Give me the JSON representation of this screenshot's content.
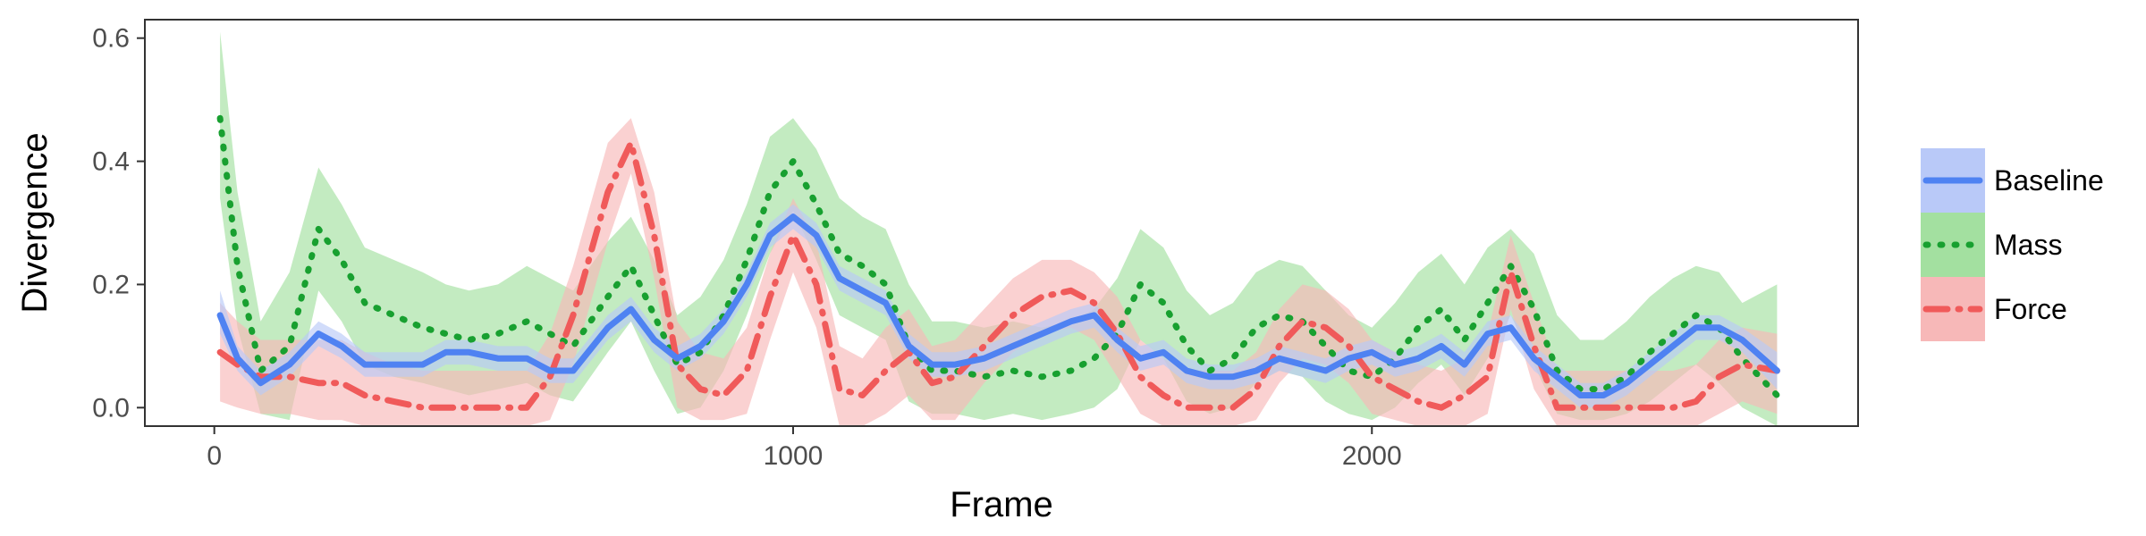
{
  "chart_data": {
    "type": "line",
    "title": "",
    "xlabel": "Frame",
    "ylabel": "Divergence",
    "xlim": [
      -120,
      2840
    ],
    "ylim": [
      -0.03,
      0.63
    ],
    "x_ticks": [
      0,
      1000,
      2000
    ],
    "x_tick_labels": [
      "0",
      "1000",
      "2000"
    ],
    "y_ticks": [
      0.0,
      0.2,
      0.4,
      0.6
    ],
    "y_tick_labels": [
      "0.0",
      "0.2",
      "0.4",
      "0.6"
    ],
    "grid": false,
    "legend_position": "right",
    "series": [
      {
        "name": "Baseline",
        "line_color": "#4f82f2",
        "band_color": "#b9c9f8",
        "line_style": "solid",
        "x": [
          10,
          40,
          80,
          130,
          180,
          220,
          260,
          310,
          360,
          400,
          440,
          490,
          540,
          580,
          620,
          680,
          720,
          760,
          800,
          840,
          880,
          920,
          960,
          1000,
          1040,
          1080,
          1120,
          1160,
          1200,
          1240,
          1280,
          1330,
          1380,
          1430,
          1480,
          1520,
          1560,
          1600,
          1640,
          1680,
          1720,
          1760,
          1800,
          1840,
          1880,
          1920,
          1960,
          2000,
          2040,
          2080,
          2120,
          2160,
          2200,
          2240,
          2280,
          2320,
          2360,
          2400,
          2440,
          2480,
          2520,
          2560,
          2600,
          2640,
          2700
        ],
        "y": [
          0.15,
          0.08,
          0.04,
          0.07,
          0.12,
          0.1,
          0.07,
          0.07,
          0.07,
          0.09,
          0.09,
          0.08,
          0.08,
          0.06,
          0.06,
          0.13,
          0.16,
          0.11,
          0.08,
          0.1,
          0.14,
          0.2,
          0.28,
          0.31,
          0.28,
          0.21,
          0.19,
          0.17,
          0.1,
          0.07,
          0.07,
          0.08,
          0.1,
          0.12,
          0.14,
          0.15,
          0.11,
          0.08,
          0.09,
          0.06,
          0.05,
          0.05,
          0.06,
          0.08,
          0.07,
          0.06,
          0.08,
          0.09,
          0.07,
          0.08,
          0.1,
          0.07,
          0.12,
          0.13,
          0.08,
          0.05,
          0.02,
          0.02,
          0.04,
          0.07,
          0.1,
          0.13,
          0.13,
          0.11,
          0.06
        ],
        "lower": [
          0.12,
          0.06,
          0.02,
          0.05,
          0.1,
          0.08,
          0.05,
          0.05,
          0.05,
          0.07,
          0.07,
          0.06,
          0.06,
          0.04,
          0.04,
          0.11,
          0.14,
          0.09,
          0.06,
          0.08,
          0.12,
          0.18,
          0.26,
          0.29,
          0.26,
          0.19,
          0.17,
          0.15,
          0.08,
          0.05,
          0.05,
          0.06,
          0.08,
          0.1,
          0.12,
          0.13,
          0.09,
          0.06,
          0.07,
          0.04,
          0.03,
          0.03,
          0.04,
          0.06,
          0.05,
          0.04,
          0.06,
          0.07,
          0.05,
          0.06,
          0.08,
          0.05,
          0.1,
          0.11,
          0.06,
          0.03,
          0.0,
          0.0,
          0.02,
          0.05,
          0.08,
          0.11,
          0.11,
          0.09,
          0.03
        ],
        "upper": [
          0.19,
          0.1,
          0.06,
          0.09,
          0.14,
          0.12,
          0.09,
          0.09,
          0.09,
          0.11,
          0.11,
          0.1,
          0.1,
          0.08,
          0.08,
          0.15,
          0.18,
          0.13,
          0.1,
          0.12,
          0.16,
          0.22,
          0.3,
          0.33,
          0.3,
          0.23,
          0.21,
          0.19,
          0.12,
          0.09,
          0.09,
          0.1,
          0.12,
          0.14,
          0.16,
          0.17,
          0.13,
          0.1,
          0.11,
          0.08,
          0.07,
          0.07,
          0.08,
          0.1,
          0.09,
          0.08,
          0.1,
          0.11,
          0.09,
          0.1,
          0.12,
          0.09,
          0.14,
          0.15,
          0.1,
          0.07,
          0.04,
          0.04,
          0.06,
          0.09,
          0.12,
          0.15,
          0.15,
          0.13,
          0.09
        ]
      },
      {
        "name": "Mass",
        "line_color": "#18a030",
        "band_color": "#a3e0a0",
        "line_style": "dotted",
        "x": [
          10,
          40,
          80,
          130,
          180,
          220,
          260,
          310,
          360,
          400,
          440,
          490,
          540,
          580,
          620,
          680,
          720,
          760,
          800,
          840,
          880,
          920,
          960,
          1000,
          1040,
          1080,
          1120,
          1160,
          1200,
          1240,
          1280,
          1330,
          1380,
          1430,
          1480,
          1520,
          1560,
          1600,
          1640,
          1680,
          1720,
          1760,
          1800,
          1840,
          1880,
          1920,
          1960,
          2000,
          2040,
          2080,
          2120,
          2160,
          2200,
          2240,
          2280,
          2320,
          2360,
          2400,
          2440,
          2480,
          2520,
          2560,
          2600,
          2640,
          2700
        ],
        "y": [
          0.47,
          0.23,
          0.06,
          0.1,
          0.29,
          0.24,
          0.17,
          0.15,
          0.13,
          0.12,
          0.11,
          0.12,
          0.14,
          0.12,
          0.1,
          0.18,
          0.23,
          0.15,
          0.07,
          0.09,
          0.15,
          0.24,
          0.35,
          0.4,
          0.33,
          0.25,
          0.23,
          0.2,
          0.1,
          0.06,
          0.06,
          0.05,
          0.06,
          0.05,
          0.06,
          0.08,
          0.12,
          0.2,
          0.17,
          0.1,
          0.06,
          0.08,
          0.13,
          0.15,
          0.14,
          0.1,
          0.06,
          0.05,
          0.08,
          0.13,
          0.16,
          0.11,
          0.17,
          0.23,
          0.16,
          0.06,
          0.03,
          0.03,
          0.05,
          0.09,
          0.12,
          0.15,
          0.13,
          0.08,
          0.02
        ],
        "lower": [
          0.34,
          0.13,
          -0.01,
          -0.02,
          0.19,
          0.14,
          0.07,
          0.05,
          0.04,
          0.03,
          0.02,
          0.03,
          0.04,
          0.02,
          0.01,
          0.09,
          0.14,
          0.06,
          -0.01,
          0.0,
          0.06,
          0.15,
          0.25,
          0.32,
          0.24,
          0.15,
          0.13,
          0.11,
          0.01,
          -0.01,
          -0.01,
          -0.02,
          -0.01,
          -0.02,
          -0.01,
          0.0,
          0.03,
          0.11,
          0.08,
          0.01,
          -0.01,
          0.0,
          0.04,
          0.06,
          0.05,
          0.01,
          -0.01,
          -0.02,
          0.0,
          0.04,
          0.07,
          0.02,
          0.08,
          0.15,
          0.07,
          -0.01,
          -0.02,
          -0.02,
          -0.01,
          0.01,
          0.04,
          0.07,
          0.04,
          0.0,
          -0.03
        ],
        "upper": [
          0.61,
          0.35,
          0.14,
          0.22,
          0.39,
          0.33,
          0.26,
          0.24,
          0.22,
          0.2,
          0.19,
          0.2,
          0.23,
          0.21,
          0.19,
          0.27,
          0.31,
          0.24,
          0.15,
          0.18,
          0.24,
          0.33,
          0.44,
          0.47,
          0.42,
          0.34,
          0.31,
          0.29,
          0.2,
          0.14,
          0.14,
          0.13,
          0.14,
          0.13,
          0.14,
          0.16,
          0.21,
          0.29,
          0.26,
          0.19,
          0.15,
          0.17,
          0.22,
          0.24,
          0.23,
          0.19,
          0.15,
          0.13,
          0.17,
          0.22,
          0.25,
          0.2,
          0.26,
          0.29,
          0.25,
          0.15,
          0.11,
          0.11,
          0.14,
          0.18,
          0.21,
          0.23,
          0.22,
          0.17,
          0.2
        ]
      },
      {
        "name": "Force",
        "line_color": "#f05a5a",
        "band_color": "#f7b8b8",
        "line_style": "dotdash",
        "x": [
          10,
          40,
          80,
          130,
          180,
          220,
          260,
          310,
          360,
          400,
          440,
          490,
          540,
          580,
          620,
          680,
          720,
          760,
          800,
          840,
          880,
          920,
          960,
          1000,
          1040,
          1080,
          1120,
          1160,
          1200,
          1240,
          1280,
          1330,
          1380,
          1430,
          1480,
          1520,
          1560,
          1600,
          1640,
          1680,
          1720,
          1760,
          1800,
          1840,
          1880,
          1920,
          1960,
          2000,
          2040,
          2080,
          2120,
          2160,
          2200,
          2240,
          2280,
          2320,
          2360,
          2400,
          2440,
          2480,
          2520,
          2560,
          2600,
          2640,
          2700
        ],
        "y": [
          0.09,
          0.07,
          0.05,
          0.05,
          0.04,
          0.04,
          0.02,
          0.01,
          0.0,
          0.0,
          0.0,
          0.0,
          0.0,
          0.05,
          0.15,
          0.35,
          0.43,
          0.28,
          0.07,
          0.03,
          0.02,
          0.06,
          0.18,
          0.28,
          0.2,
          0.03,
          0.02,
          0.06,
          0.09,
          0.04,
          0.05,
          0.1,
          0.15,
          0.18,
          0.19,
          0.17,
          0.12,
          0.05,
          0.02,
          0.0,
          0.0,
          0.0,
          0.03,
          0.1,
          0.14,
          0.13,
          0.1,
          0.05,
          0.03,
          0.01,
          0.0,
          0.02,
          0.05,
          0.22,
          0.1,
          0.0,
          0.0,
          0.0,
          0.0,
          0.0,
          0.0,
          0.01,
          0.05,
          0.07,
          0.06
        ],
        "lower": [
          0.01,
          0.0,
          -0.01,
          -0.01,
          -0.02,
          -0.02,
          -0.03,
          -0.03,
          -0.03,
          -0.03,
          -0.03,
          -0.03,
          -0.03,
          -0.02,
          0.07,
          0.27,
          0.38,
          0.21,
          0.0,
          -0.02,
          -0.02,
          -0.01,
          0.11,
          0.22,
          0.13,
          -0.03,
          -0.03,
          -0.01,
          0.02,
          -0.02,
          -0.02,
          0.04,
          0.09,
          0.12,
          0.13,
          0.11,
          0.05,
          -0.01,
          -0.03,
          -0.03,
          -0.03,
          -0.03,
          -0.02,
          0.04,
          0.08,
          0.07,
          0.04,
          -0.01,
          -0.02,
          -0.03,
          -0.03,
          -0.03,
          -0.01,
          0.16,
          0.03,
          -0.03,
          -0.03,
          -0.03,
          -0.03,
          -0.03,
          -0.03,
          -0.03,
          -0.01,
          0.01,
          -0.01
        ],
        "upper": [
          0.17,
          0.14,
          0.11,
          0.11,
          0.11,
          0.11,
          0.09,
          0.07,
          0.06,
          0.06,
          0.06,
          0.06,
          0.06,
          0.12,
          0.23,
          0.43,
          0.47,
          0.35,
          0.14,
          0.09,
          0.08,
          0.13,
          0.25,
          0.34,
          0.27,
          0.1,
          0.08,
          0.13,
          0.16,
          0.1,
          0.11,
          0.16,
          0.21,
          0.24,
          0.24,
          0.22,
          0.18,
          0.11,
          0.08,
          0.06,
          0.06,
          0.06,
          0.09,
          0.16,
          0.2,
          0.19,
          0.16,
          0.11,
          0.09,
          0.07,
          0.06,
          0.08,
          0.12,
          0.28,
          0.17,
          0.06,
          0.06,
          0.06,
          0.06,
          0.06,
          0.06,
          0.07,
          0.11,
          0.13,
          0.12
        ]
      }
    ]
  }
}
